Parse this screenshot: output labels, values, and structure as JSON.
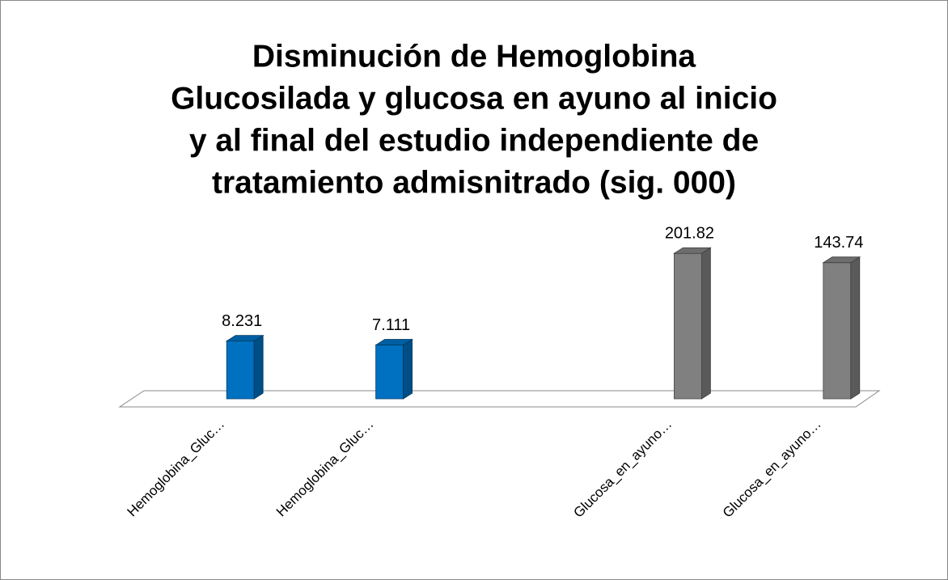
{
  "chart_data": {
    "type": "bar3d",
    "title": [
      "Disminución de Hemoglobina",
      "Glucosilada y glucosa en ayuno al inicio",
      "y al final del estudio independiente de",
      "tratamiento admisnitrado (sig. 000)"
    ],
    "categories": [
      "Hemoglobina_Gluc…",
      "Hemoglobina_Gluc…",
      null,
      "Glucosa_en_ayuno…",
      "Glucosa_en_ayuno…"
    ],
    "values": [
      8.231,
      7.111,
      null,
      201.82,
      143.74
    ],
    "colors": [
      "#0070c0",
      "#0070c0",
      null,
      "#808080",
      "#808080"
    ],
    "log_scale": true,
    "ylim": [
      1,
      1000
    ]
  }
}
